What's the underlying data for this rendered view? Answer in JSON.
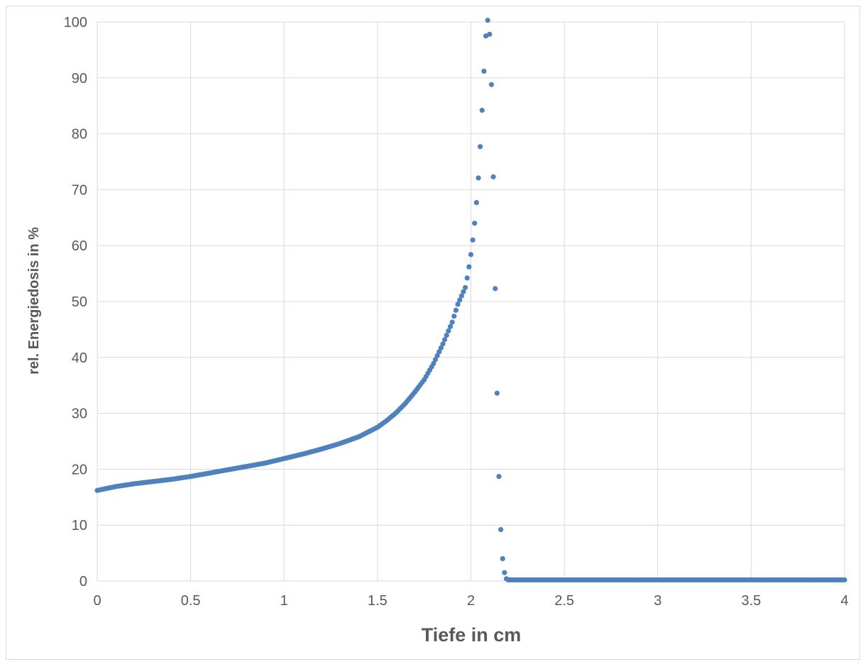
{
  "chart_data": {
    "type": "scatter",
    "title": "",
    "xlabel": "Tiefe in cm",
    "ylabel": "rel. Energiedosis in %",
    "xlim": [
      0,
      4
    ],
    "ylim": [
      0,
      100
    ],
    "x_ticks": [
      "0",
      "0.5",
      "1",
      "1.5",
      "2",
      "2.5",
      "3",
      "3.5",
      "4"
    ],
    "y_ticks": [
      "0",
      "10",
      "20",
      "30",
      "40",
      "50",
      "60",
      "70",
      "80",
      "90",
      "100"
    ],
    "grid": true,
    "legend": "none",
    "marker_color": "#4f81bd",
    "series": [
      {
        "x": [
          0,
          0.1,
          0.2,
          0.3,
          0.4,
          0.5,
          0.6,
          0.7,
          0.8,
          0.9,
          1.0,
          1.1,
          1.2,
          1.3,
          1.4,
          1.5,
          1.55,
          1.6,
          1.65,
          1.7,
          1.75,
          1.8,
          1.85,
          1.9,
          1.93,
          1.95,
          1.97,
          1.98,
          1.99,
          2.0,
          2.01,
          2.02,
          2.03,
          2.04,
          2.05,
          2.06,
          2.07,
          2.08,
          2.09,
          2.1,
          2.11,
          2.12,
          2.13,
          2.14,
          2.15,
          2.16,
          2.17,
          2.18,
          2.19,
          2.2,
          2.21,
          2.22,
          2.23,
          2.5,
          3.0,
          3.5,
          4.0
        ],
        "y": [
          16.2,
          16.9,
          17.4,
          17.8,
          18.2,
          18.7,
          19.3,
          19.9,
          20.5,
          21.1,
          21.9,
          22.7,
          23.6,
          24.6,
          25.8,
          27.5,
          28.7,
          30.1,
          31.8,
          33.8,
          36.0,
          38.9,
          42.4,
          46.3,
          49.5,
          51.0,
          52.5,
          54.2,
          56.2,
          58.4,
          61.0,
          64.0,
          67.7,
          72.1,
          77.7,
          84.2,
          91.2,
          97.5,
          100.3,
          97.8,
          88.8,
          72.3,
          52.3,
          33.6,
          18.7,
          9.2,
          4.0,
          1.5,
          0.4,
          0.2,
          0.2,
          0.2,
          0.2,
          0.2,
          0.2,
          0.2,
          0.2
        ]
      }
    ]
  }
}
